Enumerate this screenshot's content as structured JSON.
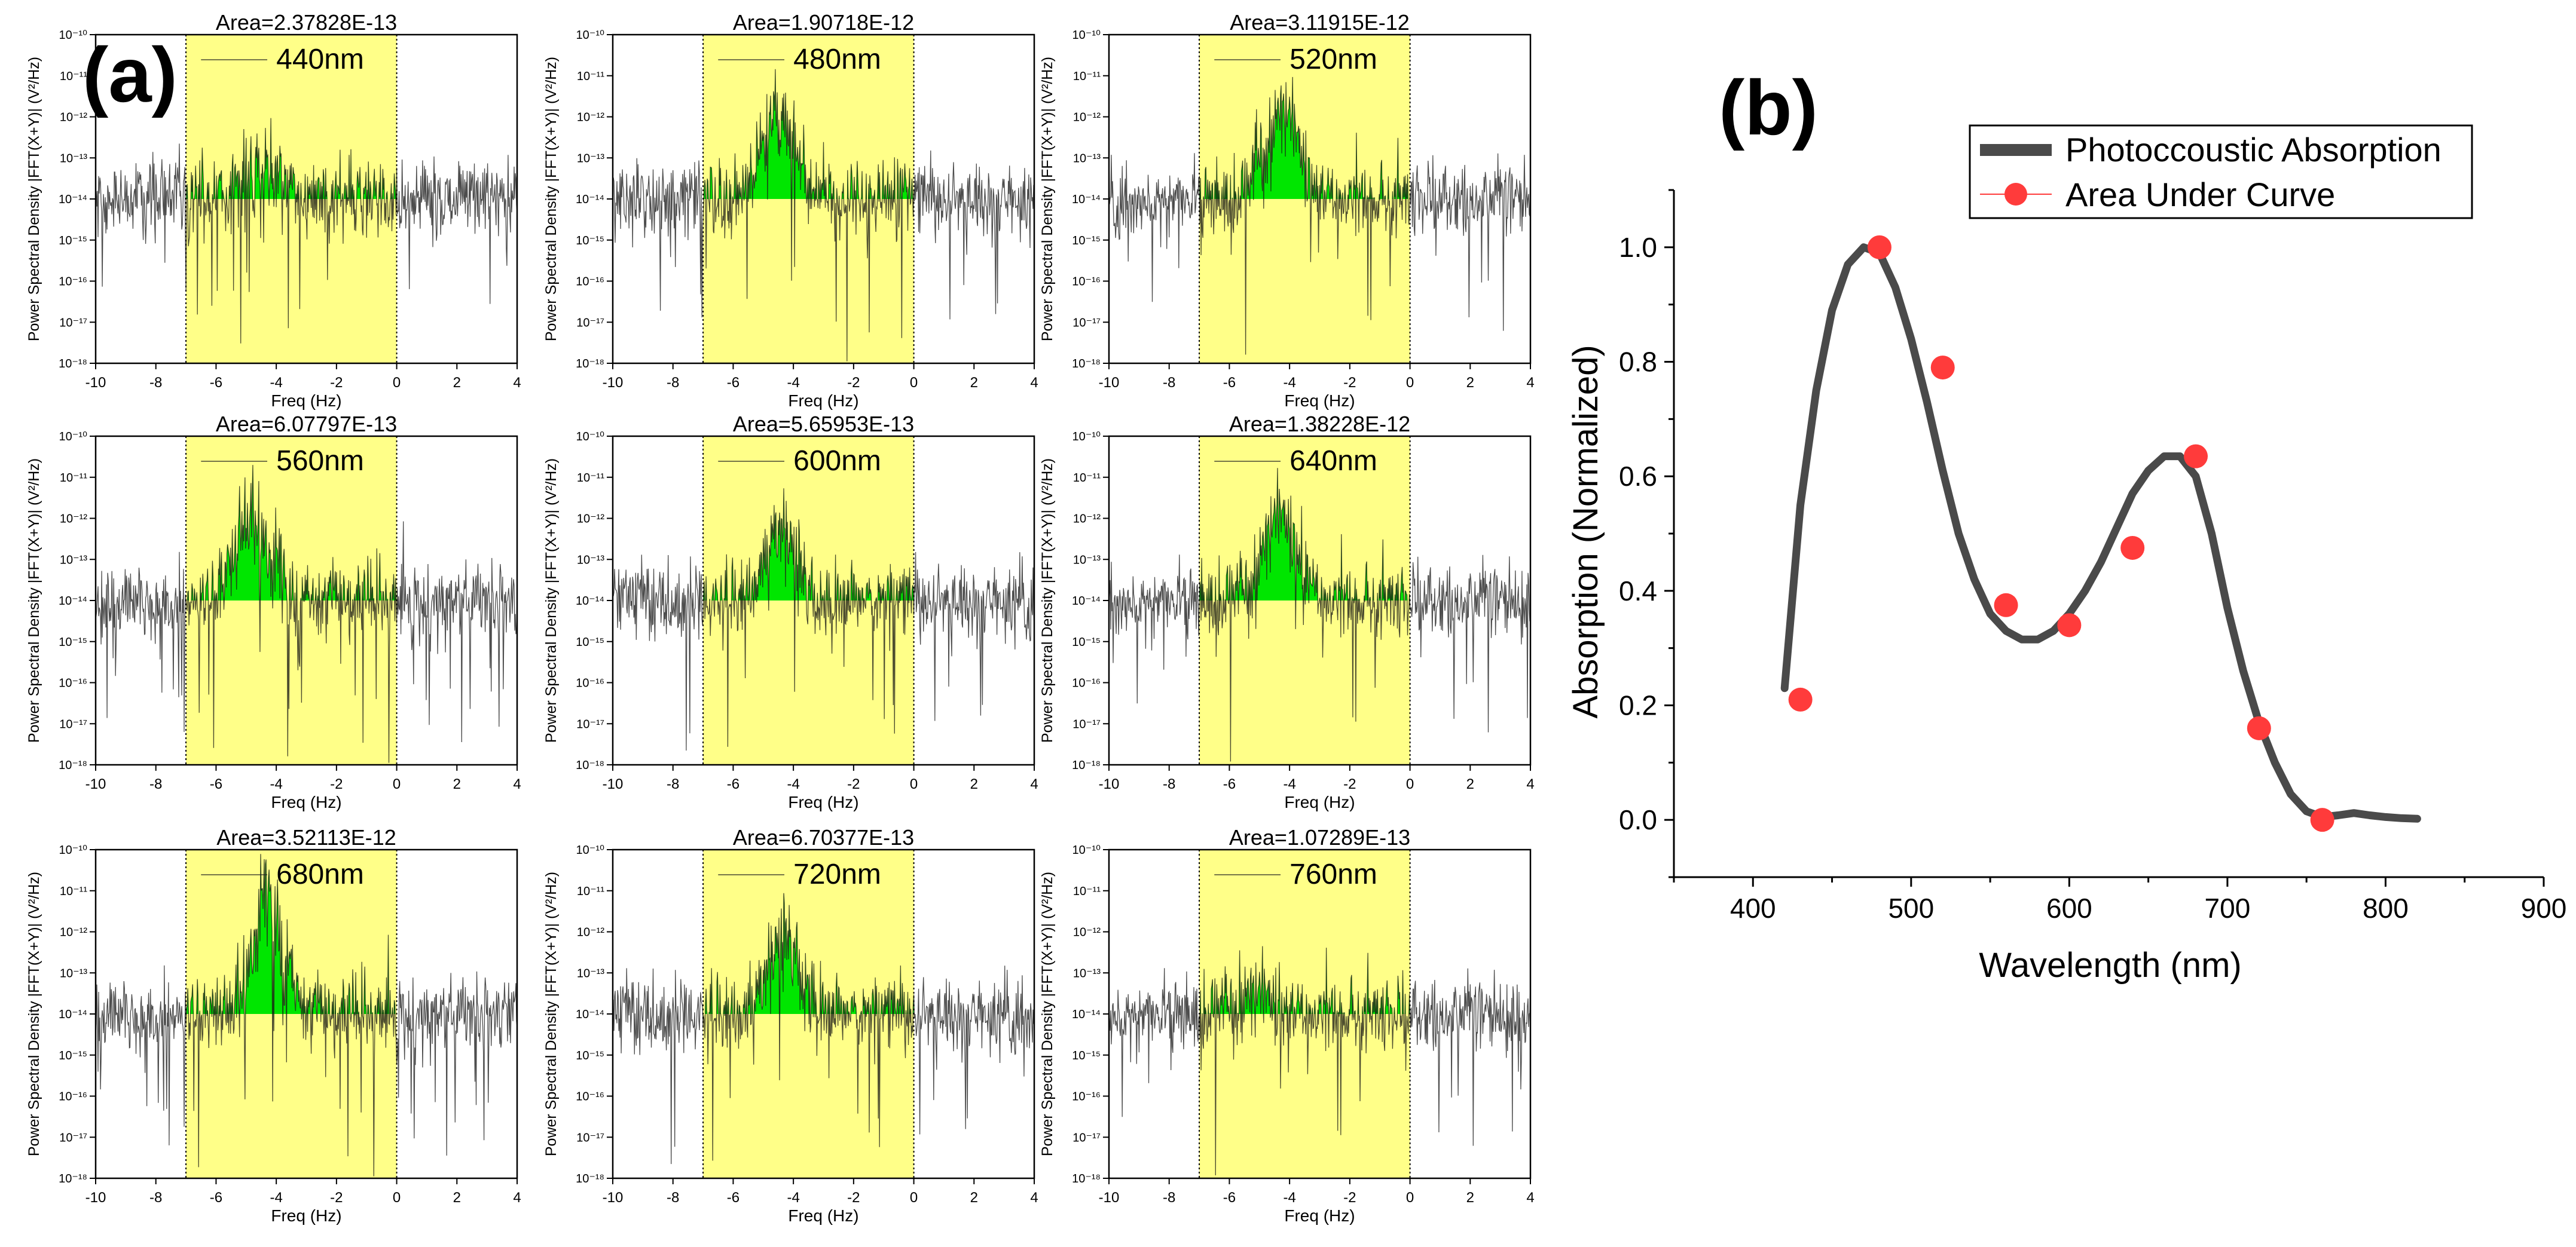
{
  "panel_a": {
    "label": "(a)",
    "xlabel": "Freq (Hz)",
    "ylabel": "Power Spectral Density |FFT(X+Y)| (V²/Hz)",
    "xticks": [
      -10,
      -8,
      -6,
      -4,
      -2,
      0,
      2,
      4
    ],
    "yticks": [
      "10⁻¹⁸",
      "10⁻¹⁷",
      "10⁻¹⁶",
      "10⁻¹⁵",
      "10⁻¹⁴",
      "10⁻¹³",
      "10⁻¹²",
      "10⁻¹¹",
      "10⁻¹⁰"
    ]
  },
  "panel_b": {
    "label": "(b)",
    "xlabel": "Wavelength (nm)",
    "ylabel": "Absorption (Normalized)",
    "xticks": [
      "400",
      "500",
      "600",
      "700",
      "800",
      "900"
    ],
    "yticks": [
      "0.0",
      "0.2",
      "0.4",
      "0.6",
      "0.8",
      "1.0"
    ],
    "legend": [
      "Photoccoustic Absorption",
      "Area Under Curve"
    ]
  },
  "colors": {
    "highlight": "#ffff88",
    "fill": "#00e600",
    "noise": "#111111",
    "curve": "#4a4a4a",
    "points": "#ff3b3b"
  },
  "chart_data": [
    {
      "type": "area",
      "panels": [
        {
          "title": "Area=2.37828E-13",
          "legend": "440nm",
          "peak_center": -4.5,
          "peak_log10": -13.3,
          "area": 2.37828e-13
        },
        {
          "title": "Area=1.90718E-12",
          "legend": "480nm",
          "peak_center": -4.5,
          "peak_log10": -11.9,
          "area": 1.90718e-12
        },
        {
          "title": "Area=3.11915E-12",
          "legend": "520nm",
          "peak_center": -4.2,
          "peak_log10": -11.9,
          "area": 3.11915e-12
        },
        {
          "title": "Area=6.07797E-13",
          "legend": "560nm",
          "peak_center": -4.8,
          "peak_log10": -11.9,
          "area": 6.07797e-13
        },
        {
          "title": "Area=5.65953E-13",
          "legend": "600nm",
          "peak_center": -4.4,
          "peak_log10": -12.2,
          "area": 5.65953e-13
        },
        {
          "title": "Area=1.38228E-12",
          "legend": "640nm",
          "peak_center": -4.3,
          "peak_log10": -11.9,
          "area": 1.38228e-12
        },
        {
          "title": "Area=3.52113E-12",
          "legend": "680nm",
          "peak_center": -4.3,
          "peak_log10": -11.4,
          "area": 3.52113e-12
        },
        {
          "title": "Area=6.70377E-13",
          "legend": "720nm",
          "peak_center": -4.3,
          "peak_log10": -12.0,
          "area": 6.70377e-13
        },
        {
          "title": "Area=1.07289E-13",
          "legend": "760nm",
          "peak_center": -5.0,
          "peak_log10": -13.5,
          "area": 1.07289e-13
        }
      ],
      "xlim": [
        -10,
        4
      ],
      "ylim_log10": [
        -18,
        -10
      ],
      "highlight_range": [
        -7,
        0
      ],
      "baseline_log10": -14,
      "noise_median_log10": -14,
      "xlabel": "Freq (Hz)",
      "ylabel": "Power Spectral Density |FFT(X+Y)| (V²/Hz)"
    },
    {
      "type": "line",
      "series": [
        {
          "name": "Photoccoustic Absorption",
          "x": [
            420,
            430,
            440,
            450,
            460,
            470,
            480,
            490,
            500,
            510,
            520,
            530,
            540,
            550,
            560,
            570,
            580,
            590,
            600,
            610,
            620,
            630,
            640,
            650,
            660,
            670,
            680,
            690,
            700,
            710,
            720,
            730,
            740,
            750,
            760,
            770,
            780,
            790,
            800,
            810,
            820
          ],
          "y": [
            0.23,
            0.55,
            0.75,
            0.89,
            0.97,
            1.0,
            0.99,
            0.93,
            0.84,
            0.73,
            0.61,
            0.5,
            0.42,
            0.36,
            0.33,
            0.315,
            0.315,
            0.33,
            0.36,
            0.4,
            0.45,
            0.51,
            0.57,
            0.61,
            0.635,
            0.635,
            0.6,
            0.5,
            0.37,
            0.26,
            0.17,
            0.1,
            0.045,
            0.015,
            0.005,
            0.008,
            0.012,
            0.008,
            0.005,
            0.003,
            0.002
          ]
        },
        {
          "name": "Area Under Curve",
          "x": [
            430,
            480,
            520,
            560,
            600,
            640,
            680,
            720,
            760
          ],
          "y": [
            0.21,
            1.0,
            0.79,
            0.375,
            0.34,
            0.475,
            0.635,
            0.16,
            0.0
          ]
        }
      ],
      "xlabel": "Wavelength (nm)",
      "ylabel": "Absorption (Normalized)",
      "xlim": [
        350,
        900
      ],
      "ylim": [
        -0.1,
        1.1
      ],
      "legend_position": "top-right"
    }
  ]
}
